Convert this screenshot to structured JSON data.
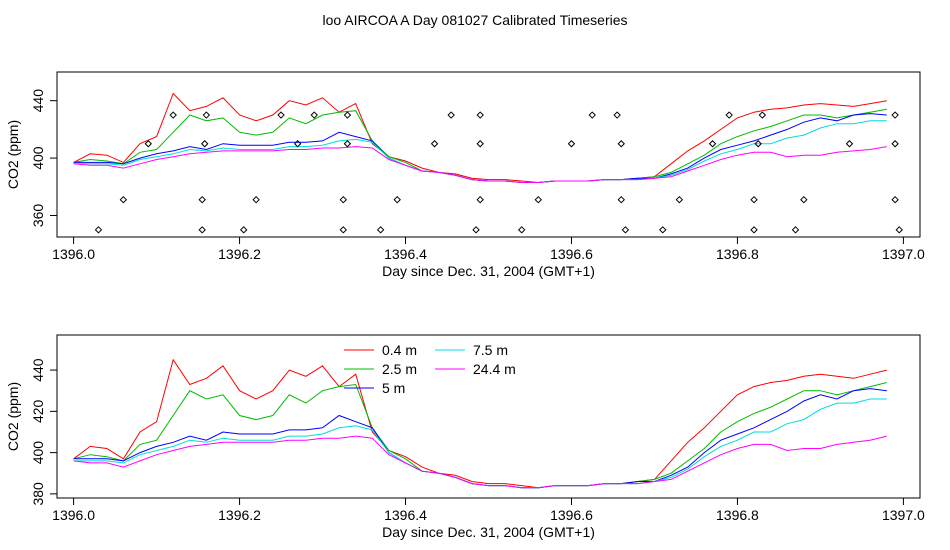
{
  "figure_title": "loo AIRCOA A  Day 081027  Calibrated Timeseries",
  "colors": {
    "0.4 m": "#ff0000",
    "2.5 m": "#00bb00",
    "5 m": "#0000ff",
    "7.5 m": "#00dddd",
    "24.4 m": "#ff00ff",
    "axis": "#000000",
    "markers": "#000000"
  },
  "chart_data": [
    {
      "type": "line",
      "panel": "top",
      "title": "",
      "xlabel": "Day since Dec. 31, 2004 (GMT+1)",
      "ylabel": "CO2 (ppm)",
      "xlim": [
        1395.98,
        1397.02
      ],
      "ylim": [
        345,
        460
      ],
      "xticks": [
        1396.0,
        1396.2,
        1396.4,
        1396.6,
        1396.8,
        1397.0
      ],
      "xtick_labels": [
        "1396.0",
        "1396.2",
        "1396.4",
        "1396.6",
        "1396.8",
        "1397.0"
      ],
      "yticks": [
        360,
        400,
        440
      ],
      "ytick_labels": [
        "360",
        "400",
        "440"
      ],
      "grid": false,
      "legend": "none",
      "series_ref": "shared_series",
      "markers": {
        "style": "open-diamond",
        "points": [
          [
            1396.03,
            350
          ],
          [
            1396.06,
            371
          ],
          [
            1396.09,
            410
          ],
          [
            1396.12,
            430
          ],
          [
            1396.155,
            350
          ],
          [
            1396.155,
            371
          ],
          [
            1396.158,
            410
          ],
          [
            1396.16,
            430
          ],
          [
            1396.205,
            350
          ],
          [
            1396.22,
            371
          ],
          [
            1396.25,
            430
          ],
          [
            1396.27,
            410
          ],
          [
            1396.29,
            430
          ],
          [
            1396.325,
            350
          ],
          [
            1396.325,
            371
          ],
          [
            1396.33,
            410
          ],
          [
            1396.33,
            430
          ],
          [
            1396.37,
            350
          ],
          [
            1396.39,
            371
          ],
          [
            1396.435,
            410
          ],
          [
            1396.455,
            430
          ],
          [
            1396.485,
            350
          ],
          [
            1396.49,
            371
          ],
          [
            1396.49,
            410
          ],
          [
            1396.49,
            430
          ],
          [
            1396.54,
            350
          ],
          [
            1396.56,
            371
          ],
          [
            1396.6,
            410
          ],
          [
            1396.625,
            430
          ],
          [
            1396.655,
            430
          ],
          [
            1396.66,
            371
          ],
          [
            1396.66,
            410
          ],
          [
            1396.665,
            350
          ],
          [
            1396.71,
            350
          ],
          [
            1396.73,
            371
          ],
          [
            1396.77,
            410
          ],
          [
            1396.79,
            430
          ],
          [
            1396.82,
            371
          ],
          [
            1396.82,
            350
          ],
          [
            1396.825,
            410
          ],
          [
            1396.83,
            430
          ],
          [
            1396.87,
            350
          ],
          [
            1396.88,
            371
          ],
          [
            1396.935,
            410
          ],
          [
            1396.99,
            430
          ],
          [
            1396.99,
            410
          ],
          [
            1396.99,
            371
          ],
          [
            1396.995,
            350
          ]
        ]
      }
    },
    {
      "type": "line",
      "panel": "bottom",
      "title": "",
      "xlabel": "Day since Dec. 31, 2004 (GMT+1)",
      "ylabel": "CO2 (ppm)",
      "xlim": [
        1395.98,
        1397.02
      ],
      "ylim": [
        378,
        457
      ],
      "xticks": [
        1396.0,
        1396.2,
        1396.4,
        1396.6,
        1396.8,
        1397.0
      ],
      "xtick_labels": [
        "1396.0",
        "1396.2",
        "1396.4",
        "1396.6",
        "1396.8",
        "1397.0"
      ],
      "yticks": [
        380,
        400,
        420,
        440
      ],
      "ytick_labels": [
        "380",
        "400",
        "420",
        "440"
      ],
      "grid": false,
      "legend": "top-center",
      "series_ref": "shared_series"
    }
  ],
  "shared_series": {
    "x": [
      1396.0,
      1396.02,
      1396.04,
      1396.06,
      1396.08,
      1396.1,
      1396.12,
      1396.14,
      1396.16,
      1396.18,
      1396.2,
      1396.22,
      1396.24,
      1396.26,
      1396.28,
      1396.3,
      1396.32,
      1396.34,
      1396.36,
      1396.38,
      1396.4,
      1396.42,
      1396.44,
      1396.46,
      1396.48,
      1396.5,
      1396.52,
      1396.54,
      1396.56,
      1396.58,
      1396.6,
      1396.62,
      1396.64,
      1396.66,
      1396.68,
      1396.7,
      1396.72,
      1396.74,
      1396.76,
      1396.78,
      1396.8,
      1396.82,
      1396.84,
      1396.86,
      1396.88,
      1396.9,
      1396.92,
      1396.94,
      1396.96,
      1396.98
    ],
    "series": [
      {
        "name": "0.4 m",
        "values": [
          397,
          403,
          402,
          397,
          410,
          415,
          445,
          433,
          436,
          442,
          430,
          426,
          430,
          440,
          437,
          442,
          432,
          438,
          410,
          401,
          398,
          393,
          390,
          389,
          386,
          385,
          385,
          384,
          383,
          384,
          384,
          384,
          385,
          385,
          386,
          387,
          396,
          405,
          412,
          420,
          428,
          432,
          434,
          435,
          437,
          438,
          437,
          436,
          438,
          440
        ]
      },
      {
        "name": "2.5 m",
        "values": [
          397,
          399,
          398,
          396,
          404,
          406,
          418,
          430,
          426,
          428,
          418,
          416,
          418,
          428,
          424,
          430,
          432,
          433,
          412,
          401,
          397,
          391,
          390,
          388,
          385,
          384,
          384,
          383,
          383,
          384,
          384,
          384,
          385,
          385,
          386,
          387,
          390,
          396,
          402,
          410,
          415,
          419,
          422,
          426,
          430,
          430,
          428,
          430,
          432,
          434
        ]
      },
      {
        "name": "5 m",
        "values": [
          397,
          397,
          397,
          396,
          400,
          403,
          405,
          408,
          406,
          410,
          409,
          409,
          409,
          411,
          411,
          412,
          418,
          415,
          412,
          400,
          395,
          391,
          390,
          388,
          385,
          384,
          384,
          383,
          383,
          384,
          384,
          384,
          385,
          385,
          386,
          386,
          389,
          393,
          400,
          406,
          409,
          412,
          416,
          420,
          425,
          428,
          426,
          430,
          431,
          430
        ]
      },
      {
        "name": "7.5 m",
        "values": [
          396,
          396,
          396,
          395,
          399,
          401,
          403,
          406,
          405,
          407,
          406,
          406,
          406,
          408,
          408,
          409,
          412,
          413,
          411,
          400,
          395,
          391,
          390,
          388,
          385,
          384,
          384,
          383,
          383,
          384,
          384,
          384,
          385,
          385,
          385,
          386,
          388,
          392,
          398,
          403,
          406,
          410,
          410,
          414,
          416,
          421,
          424,
          424,
          426,
          426
        ]
      },
      {
        "name": "24.4 m",
        "values": [
          396,
          395,
          395,
          393,
          396,
          399,
          401,
          403,
          404,
          405,
          405,
          405,
          405,
          406,
          406,
          407,
          407,
          408,
          407,
          399,
          395,
          391,
          390,
          388,
          385,
          384,
          384,
          383,
          383,
          384,
          384,
          384,
          385,
          385,
          385,
          386,
          387,
          391,
          395,
          399,
          402,
          404,
          404,
          401,
          402,
          402,
          404,
          405,
          406,
          408
        ]
      }
    ]
  }
}
